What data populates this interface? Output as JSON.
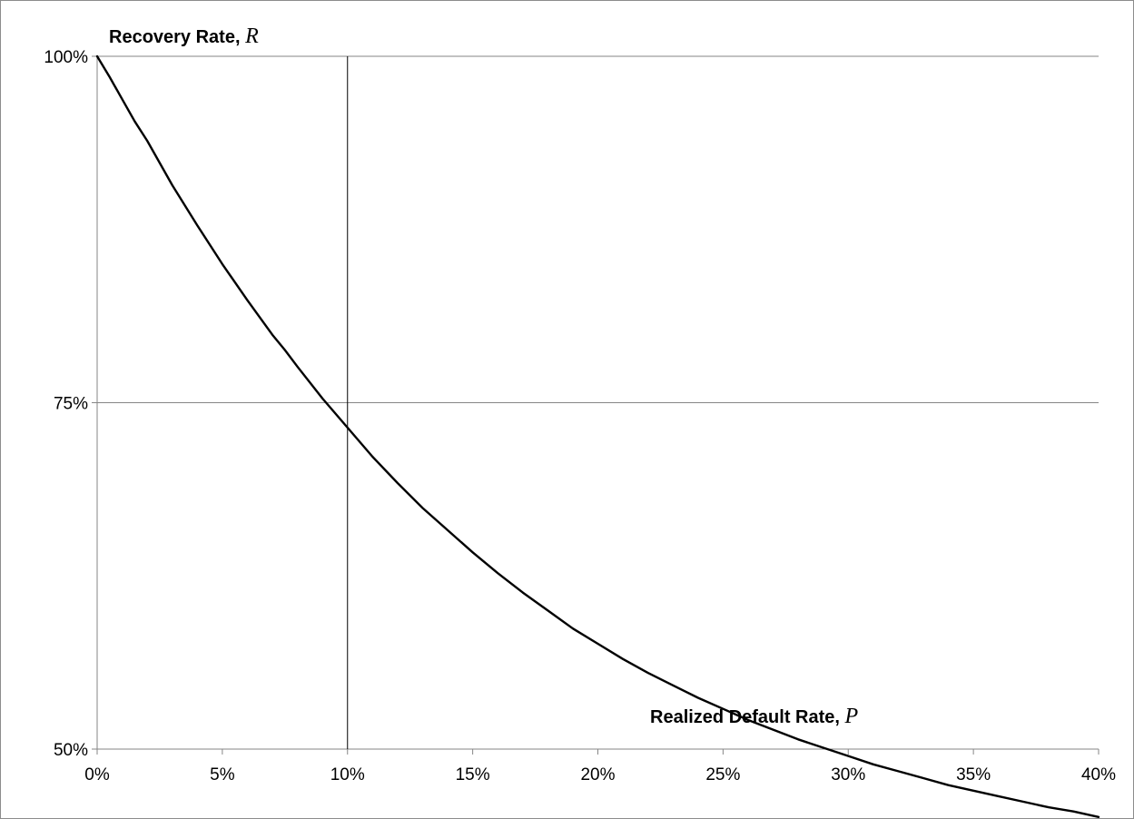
{
  "chart_data": {
    "type": "line",
    "xlabel": "Realized Default Rate, ",
    "xlabel_var": "P",
    "ylabel": "Recovery Rate, ",
    "ylabel_var": "R",
    "xlim": [
      0,
      40
    ],
    "ylim": [
      50,
      100
    ],
    "x_ticks": [
      0,
      5,
      10,
      15,
      20,
      25,
      30,
      35,
      40
    ],
    "x_tick_labels": [
      "0%",
      "5%",
      "10%",
      "15%",
      "20%",
      "25%",
      "30%",
      "35%",
      "40%"
    ],
    "y_ticks": [
      50,
      75,
      100
    ],
    "y_tick_labels": [
      "50%",
      "75%",
      "100%"
    ],
    "grid": "horizontal",
    "reference_line_x": 10,
    "series": [
      {
        "color": "#000000",
        "x": [
          0,
          0.5,
          1,
          1.5,
          2,
          3,
          4,
          5,
          6,
          7,
          7.5,
          8,
          9,
          10,
          11,
          12,
          13,
          14,
          15,
          16,
          17,
          18,
          19,
          20,
          21,
          22,
          23,
          24,
          25,
          26,
          27,
          28,
          29,
          30,
          31,
          32,
          33,
          34,
          35,
          36,
          37,
          38,
          39,
          40
        ],
        "y": [
          100,
          98.5,
          96.9,
          95.3,
          93.9,
          90.7,
          87.8,
          85.0,
          82.4,
          79.9,
          78.8,
          77.6,
          75.3,
          73.2,
          71.1,
          69.2,
          67.4,
          65.8,
          64.2,
          62.7,
          61.3,
          60.0,
          58.7,
          57.6,
          56.5,
          55.5,
          54.6,
          53.7,
          52.9,
          52.1,
          51.4,
          50.7,
          50.1,
          49.5,
          48.9,
          48.4,
          47.9,
          47.4,
          47.0,
          46.6,
          46.2,
          45.8,
          45.5,
          45.1
        ]
      }
    ]
  }
}
